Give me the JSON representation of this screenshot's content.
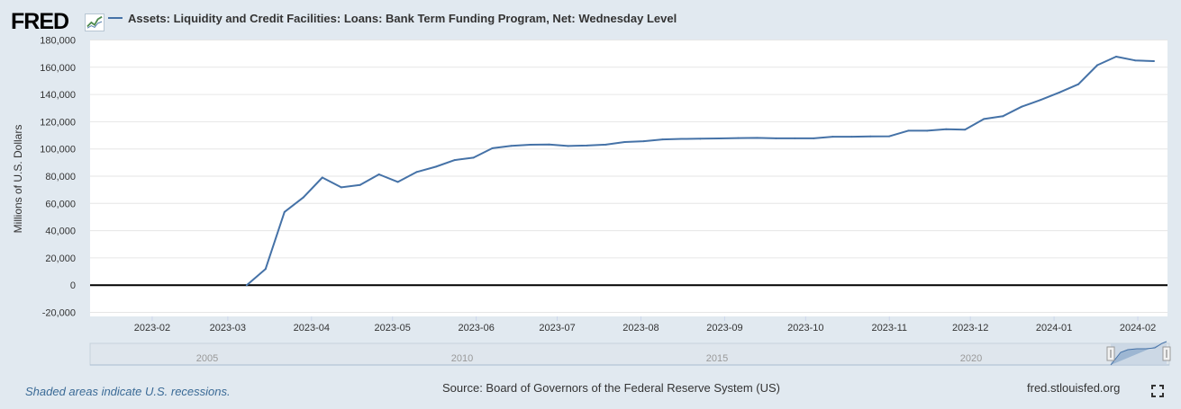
{
  "header": {
    "logo_text": "FRED",
    "logo_icon": "line-chart-icon",
    "series_title": "Assets: Liquidity and Credit Facilities: Loans: Bank Term Funding Program, Net: Wednesday Level"
  },
  "footer": {
    "recession_note": "Shaded areas indicate U.S. recessions.",
    "source": "Source: Board of Governors of the Federal Reserve System (US)",
    "site": "fred.stlouisfed.org",
    "fullscreen_icon": "fullscreen-icon"
  },
  "colors": {
    "background": "#e1e9f0",
    "plot_background": "#ffffff",
    "series": "#4572a7",
    "zero_line": "#000000",
    "navigator_fill": "#c6d3e2"
  },
  "chart_data": {
    "type": "line",
    "title": "",
    "xlabel": "",
    "ylabel": "Millions of U.S. Dollars",
    "ylim": [
      -20000,
      180000
    ],
    "yticks": [
      -20000,
      0,
      20000,
      40000,
      60000,
      80000,
      100000,
      120000,
      140000,
      160000,
      180000
    ],
    "ytick_labels": [
      "-20,000",
      "0",
      "20,000",
      "40,000",
      "60,000",
      "80,000",
      "100,000",
      "120,000",
      "140,000",
      "160,000",
      "180,000"
    ],
    "xlim": [
      "2023-01-09",
      "2024-02-12"
    ],
    "xtick_labels": [
      "2023-02",
      "2023-03",
      "2023-04",
      "2023-05",
      "2023-06",
      "2023-07",
      "2023-08",
      "2023-09",
      "2023-10",
      "2023-11",
      "2023-12",
      "2024-01",
      "2024-02"
    ],
    "grid": true,
    "legend": "top-left",
    "series": [
      {
        "name": "Assets: Liquidity and Credit Facilities: Loans: Bank Term Funding Program, Net: Wednesday Level",
        "x": [
          "2023-03-08",
          "2023-03-15",
          "2023-03-22",
          "2023-03-29",
          "2023-04-05",
          "2023-04-12",
          "2023-04-19",
          "2023-04-26",
          "2023-05-03",
          "2023-05-10",
          "2023-05-17",
          "2023-05-24",
          "2023-05-31",
          "2023-06-07",
          "2023-06-14",
          "2023-06-21",
          "2023-06-28",
          "2023-07-05",
          "2023-07-12",
          "2023-07-19",
          "2023-07-26",
          "2023-08-02",
          "2023-08-09",
          "2023-08-16",
          "2023-08-23",
          "2023-08-30",
          "2023-09-06",
          "2023-09-13",
          "2023-09-20",
          "2023-09-27",
          "2023-10-04",
          "2023-10-11",
          "2023-10-18",
          "2023-10-25",
          "2023-11-01",
          "2023-11-08",
          "2023-11-15",
          "2023-11-22",
          "2023-11-29",
          "2023-12-06",
          "2023-12-13",
          "2023-12-20",
          "2023-12-27",
          "2024-01-03",
          "2024-01-10",
          "2024-01-17",
          "2024-01-24",
          "2024-01-31",
          "2024-02-07"
        ],
        "values": [
          0,
          11900,
          53700,
          64400,
          79000,
          71800,
          73600,
          81300,
          75800,
          83100,
          86900,
          91800,
          93600,
          100500,
          102300,
          103100,
          103300,
          102200,
          102500,
          103200,
          105100,
          105700,
          107000,
          107400,
          107500,
          107700,
          108000,
          108100,
          107800,
          107800,
          107800,
          109000,
          109000,
          109200,
          109300,
          113400,
          113400,
          114500,
          114200,
          122000,
          124000,
          131000,
          136000,
          141500,
          147500,
          161500,
          167800,
          165000,
          164500
        ]
      }
    ]
  },
  "navigator": {
    "labels": [
      "2005",
      "2010",
      "2015",
      "2020"
    ]
  }
}
